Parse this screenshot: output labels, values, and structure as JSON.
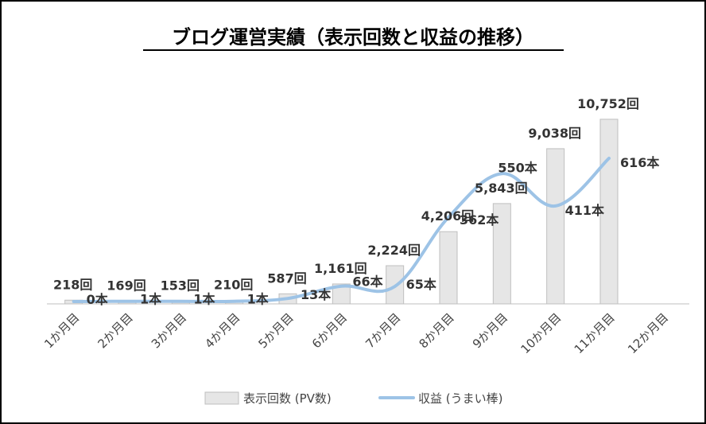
{
  "chart_data": {
    "type": "bar",
    "title": "ブログ運営実績（表示回数と収益の推移）",
    "categories": [
      "1か月目",
      "2か月目",
      "3か月目",
      "4か月目",
      "5か月目",
      "6か月目",
      "7か月目",
      "8か月目",
      "9か月目",
      "10か月目",
      "11か月目",
      "12か月目"
    ],
    "series": [
      {
        "name": "表示回数 (PV数)",
        "type": "bar",
        "values": [
          218,
          169,
          153,
          210,
          587,
          1161,
          2224,
          4206,
          5843,
          9038,
          10752,
          null
        ],
        "labels": [
          "218回",
          "169回",
          "153回",
          "210回",
          "587回",
          "1,161回",
          "2,224回",
          "4,206回",
          "5,843回",
          "9,038回",
          "10,752回",
          ""
        ],
        "color": "#e6e6e6"
      },
      {
        "name": "収益 (うまい棒)",
        "type": "line",
        "values": [
          0,
          1,
          1,
          1,
          13,
          66,
          65,
          362,
          550,
          411,
          616,
          null
        ],
        "labels": [
          "0本",
          "1本",
          "1本",
          "1本",
          "13本",
          "66本",
          "65本",
          "362本",
          "550本",
          "411本",
          "616本",
          ""
        ],
        "color": "#9dc3e6"
      }
    ],
    "legend_position": "bottom",
    "grid": false
  }
}
